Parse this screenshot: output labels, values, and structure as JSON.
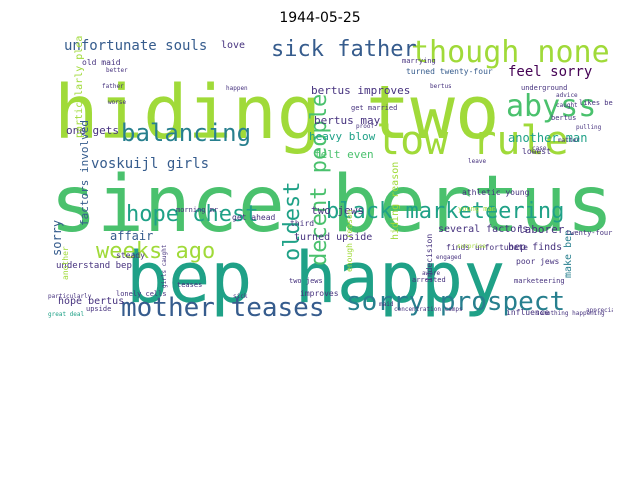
{
  "title": "1944-05-25",
  "colors": {
    "background": "#ffffff",
    "palette": [
      "#440154",
      "#46327e",
      "#365c8d",
      "#277f8e",
      "#1fa187",
      "#4ac16d",
      "#a0da39",
      "#fde725"
    ]
  },
  "words": [
    {
      "text": "hiding two",
      "weight": 1.0,
      "color": "#a0da39"
    },
    {
      "text": "since bertus",
      "weight": 0.98,
      "color": "#4ac16d"
    },
    {
      "text": "bep happy",
      "weight": 0.95,
      "color": "#1fa187"
    },
    {
      "text": "low rule",
      "weight": 0.6,
      "color": "#a0da39"
    },
    {
      "text": "though none",
      "weight": 0.45,
      "color": "#a0da39"
    },
    {
      "text": "sick father",
      "weight": 0.38,
      "color": "#365c8d"
    },
    {
      "text": "abyss",
      "weight": 0.38,
      "color": "#4ac16d"
    },
    {
      "text": "balancing",
      "weight": 0.38,
      "color": "#277f8e"
    },
    {
      "text": "mother teases",
      "weight": 0.4,
      "color": "#365c8d"
    },
    {
      "text": "sorry prospect",
      "weight": 0.4,
      "color": "#277f8e"
    },
    {
      "text": "black marketeering",
      "weight": 0.33,
      "color": "#1fa187"
    },
    {
      "text": "hope chest",
      "weight": 0.33,
      "color": "#1fa187"
    },
    {
      "text": "weeks ago",
      "weight": 0.3,
      "color": "#a0da39"
    },
    {
      "text": "decent people",
      "weight": 0.3,
      "color": "#4ac16d"
    },
    {
      "text": "oldest",
      "weight": 0.3,
      "color": "#1fa187"
    },
    {
      "text": "unfortunate souls",
      "weight": 0.18,
      "color": "#365c8d"
    },
    {
      "text": "voskuijl girls",
      "weight": 0.18,
      "color": "#365c8d"
    },
    {
      "text": "feel sorry",
      "weight": 0.18,
      "color": "#440154"
    },
    {
      "text": "another man",
      "weight": 0.14,
      "color": "#1fa187"
    },
    {
      "text": "bertus improves",
      "weight": 0.13,
      "color": "#46327e"
    },
    {
      "text": "bertus may",
      "weight": 0.13,
      "color": "#46327e"
    },
    {
      "text": "heavy blow",
      "weight": 0.13,
      "color": "#1fa187"
    },
    {
      "text": "felt even",
      "weight": 0.13,
      "color": "#4ac16d"
    },
    {
      "text": "two jews",
      "weight": 0.13,
      "color": "#46327e"
    },
    {
      "text": "hiding reason",
      "weight": 0.11,
      "color": "#a0da39"
    },
    {
      "text": "one gets",
      "weight": 0.13,
      "color": "#46327e"
    },
    {
      "text": "factors involved",
      "weight": 0.13,
      "color": "#365c8d"
    },
    {
      "text": "sorry",
      "weight": 0.13,
      "color": "#365c8d"
    },
    {
      "text": "affair",
      "weight": 0.14,
      "color": "#365c8d"
    },
    {
      "text": "understand bep",
      "weight": 0.1,
      "color": "#46327e"
    },
    {
      "text": "hope bertus",
      "weight": 0.1,
      "color": "#46327e"
    },
    {
      "text": "turned upside",
      "weight": 0.12,
      "color": "#46327e"
    },
    {
      "text": "several factors",
      "weight": 0.12,
      "color": "#46327e"
    },
    {
      "text": "make bep",
      "weight": 0.12,
      "color": "#277f8e"
    },
    {
      "text": "laborer",
      "weight": 0.12,
      "color": "#46327e"
    },
    {
      "text": "bep finds",
      "weight": 0.1,
      "color": "#46327e"
    },
    {
      "text": "poor jews",
      "weight": 0.08,
      "color": "#46327e"
    },
    {
      "text": "lowest",
      "weight": 0.08,
      "color": "#46327e"
    },
    {
      "text": "particularly pleased",
      "weight": 0.1,
      "color": "#a0da39"
    },
    {
      "text": "love",
      "weight": 0.09,
      "color": "#46327e"
    },
    {
      "text": "old maid",
      "weight": 0.07,
      "color": "#46327e"
    },
    {
      "text": "turned twenty-four",
      "weight": 0.08,
      "color": "#365c8d"
    },
    {
      "text": "twenty-four",
      "weight": 0.07,
      "color": "#46327e"
    },
    {
      "text": "indecision",
      "weight": 0.07,
      "color": "#46327e"
    },
    {
      "text": "third",
      "weight": 0.07,
      "color": "#46327e"
    },
    {
      "text": "steady",
      "weight": 0.07,
      "color": "#46327e"
    },
    {
      "text": "finds unfortunate",
      "weight": 0.07,
      "color": "#46327e"
    },
    {
      "text": "get ahead",
      "weight": 0.07,
      "color": "#46327e"
    },
    {
      "text": "get married",
      "weight": 0.06,
      "color": "#46327e"
    },
    {
      "text": "marketeering",
      "weight": 0.06,
      "color": "#46327e"
    },
    {
      "text": "marrying",
      "weight": 0.06,
      "color": "#46327e"
    },
    {
      "text": "likes bertus",
      "weight": 0.06,
      "color": "#46327e"
    },
    {
      "text": "influence",
      "weight": 0.06,
      "color": "#46327e"
    },
    {
      "text": "athletic young",
      "weight": 0.06,
      "color": "#46327e"
    },
    {
      "text": "young man",
      "weight": 0.06,
      "color": "#a0da39"
    },
    {
      "text": "enough reason",
      "weight": 0.06,
      "color": "#a0da39"
    },
    {
      "text": "morning mr.",
      "weight": 0.06,
      "color": "#46327e"
    },
    {
      "text": "two jews",
      "weight": 0.06,
      "color": "#46327e"
    },
    {
      "text": "upside",
      "weight": 0.05,
      "color": "#46327e"
    },
    {
      "text": "improves",
      "weight": 0.06,
      "color": "#46327e"
    },
    {
      "text": "teases",
      "weight": 0.05,
      "color": "#46327e"
    },
    {
      "text": "another",
      "weight": 0.05,
      "color": "#a0da39"
    },
    {
      "text": "lonely cells",
      "weight": 0.05,
      "color": "#46327e"
    },
    {
      "text": "girls caught",
      "weight": 0.05,
      "color": "#46327e"
    },
    {
      "text": "arrested",
      "weight": 0.05,
      "color": "#46327e"
    },
    {
      "text": "bertus",
      "weight": 0.05,
      "color": "#46327e"
    },
    {
      "text": "sick",
      "weight": 0.05,
      "color": "#46327e"
    },
    {
      "text": "engaged",
      "weight": 0.05,
      "color": "#46327e"
    },
    {
      "text": "underground",
      "weight": 0.05,
      "color": "#46327e"
    },
    {
      "text": "concentration camps",
      "weight": 0.04,
      "color": "#46327e"
    },
    {
      "text": "something happening",
      "weight": 0.04,
      "color": "#46327e"
    },
    {
      "text": "appreciate",
      "weight": 0.04,
      "color": "#46327e"
    },
    {
      "text": "great deal",
      "weight": 0.04,
      "color": "#1fa187"
    },
    {
      "text": "particularly",
      "weight": 0.04,
      "color": "#46327e"
    },
    {
      "text": "better",
      "weight": 0.04,
      "color": "#46327e"
    },
    {
      "text": "father",
      "weight": 0.04,
      "color": "#46327e"
    },
    {
      "text": "worse",
      "weight": 0.04,
      "color": "#46327e"
    },
    {
      "text": "happen",
      "weight": 0.04,
      "color": "#46327e"
    },
    {
      "text": "proof",
      "weight": 0.04,
      "color": "#46327e"
    },
    {
      "text": "advice",
      "weight": 0.04,
      "color": "#46327e"
    },
    {
      "text": "pulling",
      "weight": 0.04,
      "color": "#46327e"
    },
    {
      "text": "surprise",
      "weight": 0.04,
      "color": "#a0da39"
    },
    {
      "text": "case",
      "weight": 0.04,
      "color": "#46327e"
    },
    {
      "text": "leave",
      "weight": 0.04,
      "color": "#46327e"
    },
    {
      "text": "bertus",
      "weight": 0.04,
      "color": "#46327e"
    },
    {
      "text": "maid",
      "weight": 0.04,
      "color": "#46327e"
    },
    {
      "text": "caught",
      "weight": 0.04,
      "color": "#46327e"
    },
    {
      "text": "matter",
      "weight": 0.04,
      "color": "#46327e"
    },
    {
      "text": "aware",
      "weight": 0.04,
      "color": "#46327e"
    }
  ]
}
